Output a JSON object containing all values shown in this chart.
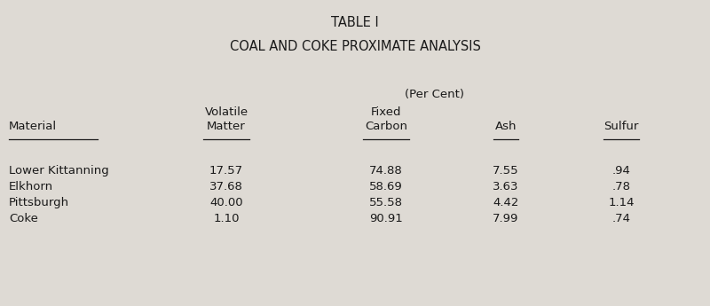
{
  "title1": "TABLE I",
  "title2": "COAL AND COKE PROXIMATE ANALYSIS",
  "per_cent_label": "(Per Cent)",
  "col_header_line1": [
    "Volatile",
    "Fixed",
    "",
    ""
  ],
  "col_header_line2": [
    "Matter",
    "Carbon",
    "Ash",
    "Sulfur"
  ],
  "row_label": "Material",
  "materials": [
    "Lower Kittanning",
    "Elkhorn",
    "Pittsburgh",
    "Coke"
  ],
  "volatile_matter": [
    "17.57",
    "37.68",
    "40.00",
    "1.10"
  ],
  "fixed_carbon": [
    "74.88",
    "58.69",
    "55.58",
    "90.91"
  ],
  "ash": [
    "7.55",
    "3.63",
    "4.42",
    "7.99"
  ],
  "sulfur": [
    ".94",
    ".78",
    "1.14",
    ".74"
  ],
  "bg_color": "#dedad4",
  "font_color": "#1a1a1a"
}
